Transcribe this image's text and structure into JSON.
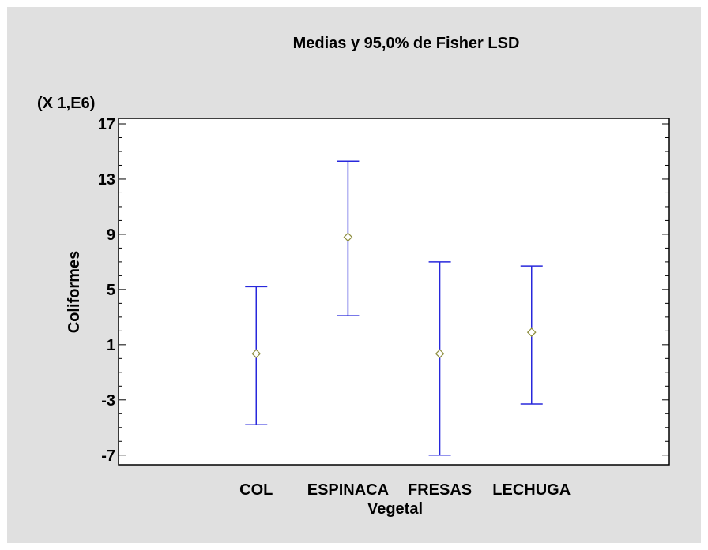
{
  "chart_data": {
    "type": "errorbar",
    "title": "Medias y 95,0% de Fisher LSD",
    "xlabel": "Vegetal",
    "ylabel": "Coliformes",
    "multiplier_label": "(X 1,E6)",
    "categories": [
      "COL",
      "ESPINACA",
      "FRESAS",
      "LECHUGA"
    ],
    "means": [
      0.35,
      8.8,
      0.35,
      1.9
    ],
    "lower": [
      -4.8,
      3.1,
      -7.0,
      -3.3
    ],
    "upper": [
      5.2,
      14.3,
      7.0,
      6.7
    ],
    "ylim": [
      -7.7,
      17.4
    ],
    "yticks": [
      -7,
      -3,
      1,
      5,
      9,
      13,
      17
    ],
    "grid": false,
    "colors": {
      "bar": "#2828dc",
      "mean_marker": "#8c8c3c",
      "background": "#e0e0e0",
      "plot_area": "#ffffff"
    }
  }
}
